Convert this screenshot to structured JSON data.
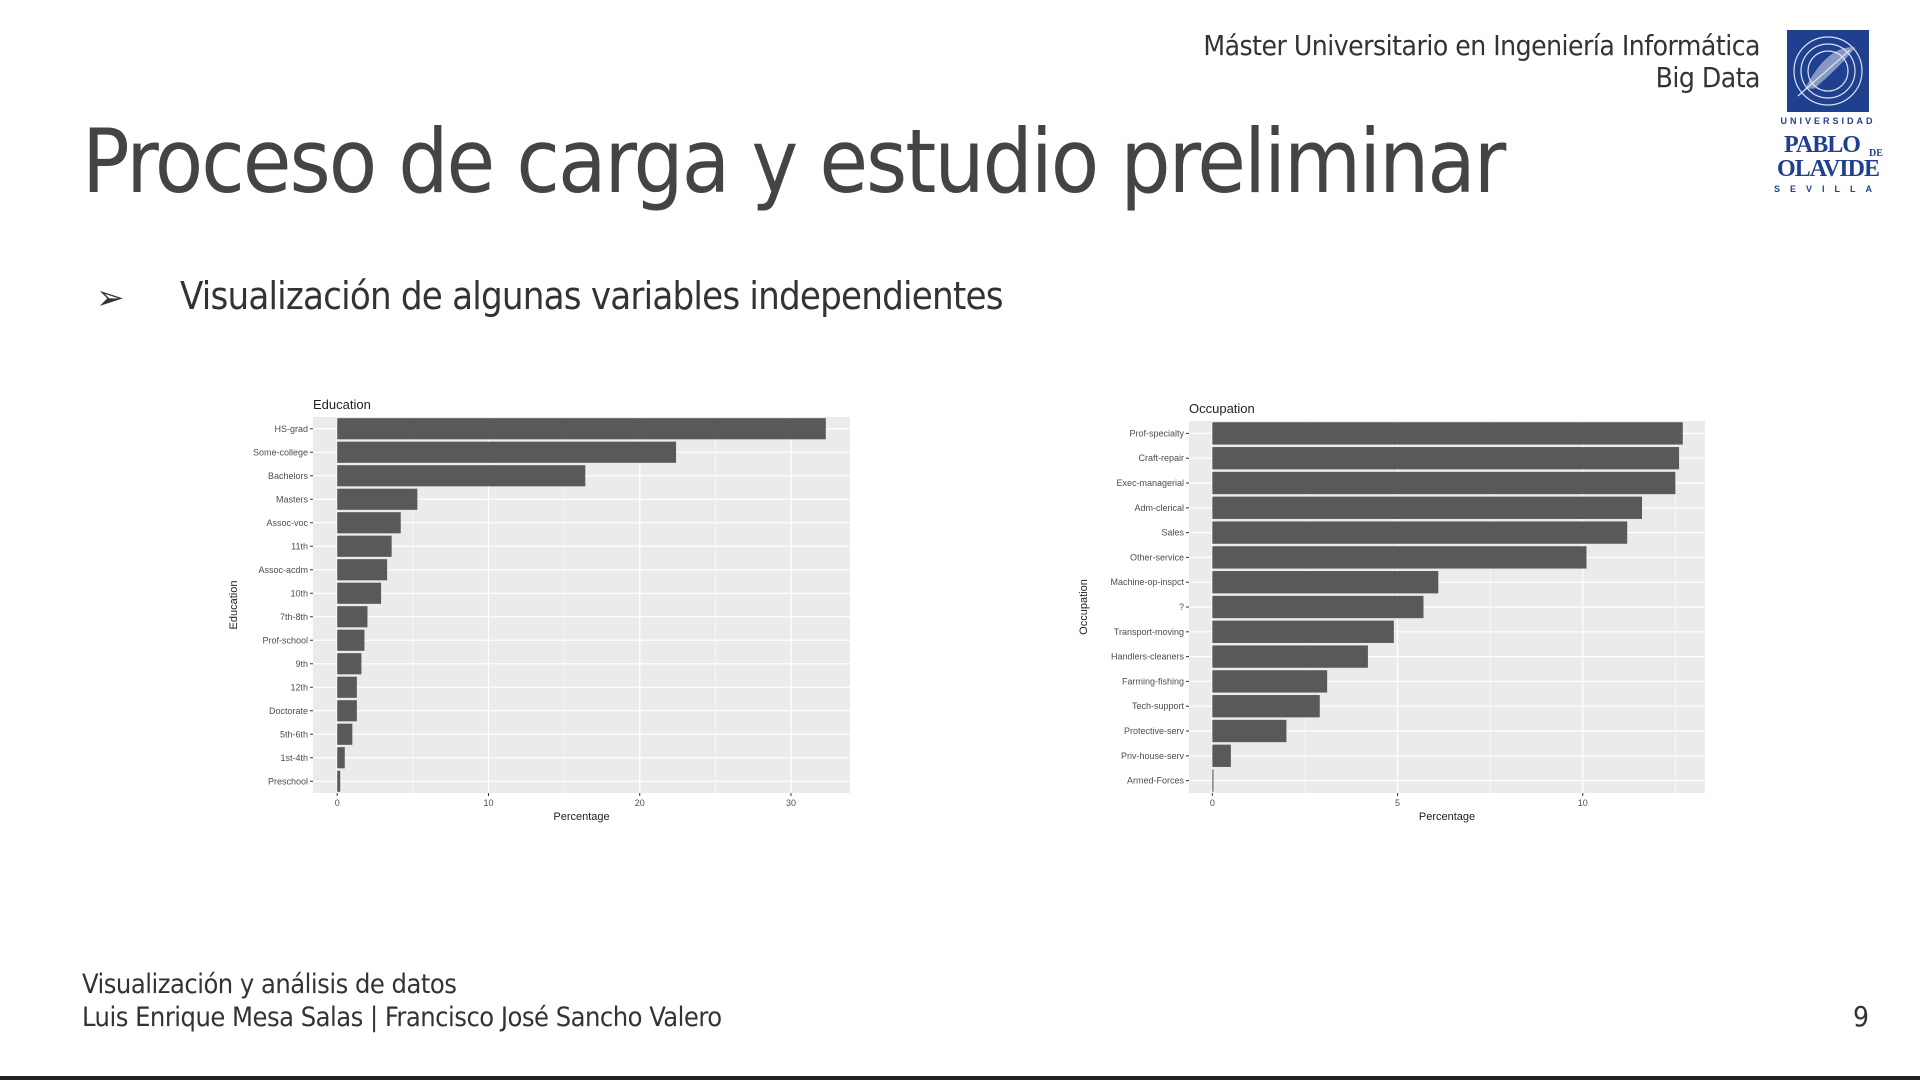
{
  "header": {
    "program": "Máster Universitario en Ingeniería Informática",
    "specialty": "Big Data"
  },
  "logo": {
    "top_text": "UNIVERSIDAD",
    "name_line1": "PABLO",
    "name_de": "DE",
    "name_line2": "OLAVIDE",
    "city": "SEVILLA",
    "color": "#1f3f8f"
  },
  "title": "Proceso de carga y estudio preliminar",
  "bullet": {
    "icon": "arrowhead-bullet-icon",
    "text": "Visualización de algunas variables independientes"
  },
  "footer": {
    "course": "Visualización y análisis de datos",
    "authors": "Luis Enrique Mesa Salas | Francisco José Sancho Valero",
    "page": "9"
  },
  "chart_data": [
    {
      "type": "bar",
      "orientation": "horizontal",
      "title": "Education",
      "xlabel": "Percentage",
      "ylabel": "Education",
      "categories": [
        "HS-grad",
        "Some-college",
        "Bachelors",
        "Masters",
        "Assoc-voc",
        "11th",
        "Assoc-acdm",
        "10th",
        "7th-8th",
        "Prof-school",
        "9th",
        "12th",
        "Doctorate",
        "5th-6th",
        "1st-4th",
        "Preschool"
      ],
      "values": [
        32.3,
        22.4,
        16.4,
        5.3,
        4.2,
        3.6,
        3.3,
        2.9,
        2.0,
        1.8,
        1.6,
        1.3,
        1.3,
        1.0,
        0.5,
        0.2
      ],
      "xticks": [
        0,
        10,
        20,
        30
      ],
      "xlim": [
        -1.6,
        33.9
      ],
      "bar_color": "#595959",
      "panel_color": "#ebebeb",
      "grid": true
    },
    {
      "type": "bar",
      "orientation": "horizontal",
      "title": "Occupation",
      "xlabel": "Percentage",
      "ylabel": "Occupation",
      "categories": [
        "Prof-specialty",
        "Craft-repair",
        "Exec-managerial",
        "Adm-clerical",
        "Sales",
        "Other-service",
        "Machine-op-inspct",
        "?",
        "Transport-moving",
        "Handlers-cleaners",
        "Farming-fishing",
        "Tech-support",
        "Protective-serv",
        "Priv-house-serv",
        "Armed-Forces"
      ],
      "values": [
        12.7,
        12.6,
        12.5,
        11.6,
        11.2,
        10.1,
        6.1,
        5.7,
        4.9,
        4.2,
        3.1,
        2.9,
        2.0,
        0.5,
        0.03
      ],
      "xticks": [
        0,
        5,
        10
      ],
      "xlim": [
        -0.63,
        13.3
      ],
      "bar_color": "#595959",
      "panel_color": "#ebebeb",
      "grid": true
    }
  ]
}
